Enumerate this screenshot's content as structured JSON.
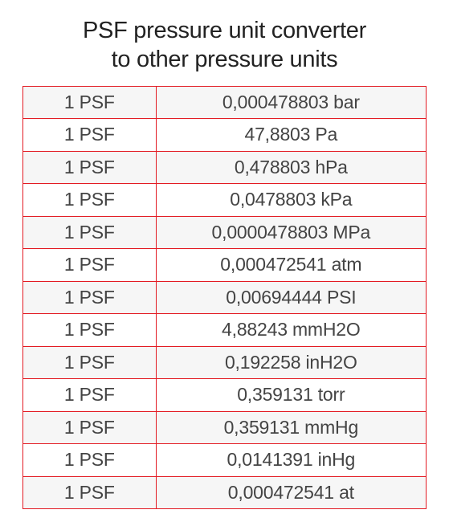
{
  "title": {
    "line1": "PSF pressure unit converter",
    "line2": "to other pressure units"
  },
  "table": {
    "border_color": "#e31b23",
    "row_bg_odd": "#f6f6f6",
    "row_bg_even": "#ffffff",
    "text_color": "#444444",
    "font_size": 23,
    "columns": [
      "source",
      "target"
    ],
    "rows": [
      {
        "source": "1 PSF",
        "target": "0,000478803 bar"
      },
      {
        "source": "1 PSF",
        "target": "47,8803 Pa"
      },
      {
        "source": "1 PSF",
        "target": "0,478803 hPa"
      },
      {
        "source": "1 PSF",
        "target": "0,0478803 kPa"
      },
      {
        "source": "1 PSF",
        "target": "0,0000478803 MPa"
      },
      {
        "source": "1 PSF",
        "target": "0,000472541 atm"
      },
      {
        "source": "1 PSF",
        "target": "0,00694444 PSI"
      },
      {
        "source": "1 PSF",
        "target": "4,88243 mmH2O"
      },
      {
        "source": "1 PSF",
        "target": "0,192258 inH2O"
      },
      {
        "source": "1 PSF",
        "target": "0,359131 torr"
      },
      {
        "source": "1 PSF",
        "target": "0,359131 mmHg"
      },
      {
        "source": "1 PSF",
        "target": "0,0141391 inHg"
      },
      {
        "source": "1 PSF",
        "target": "0,000472541 at"
      }
    ]
  }
}
